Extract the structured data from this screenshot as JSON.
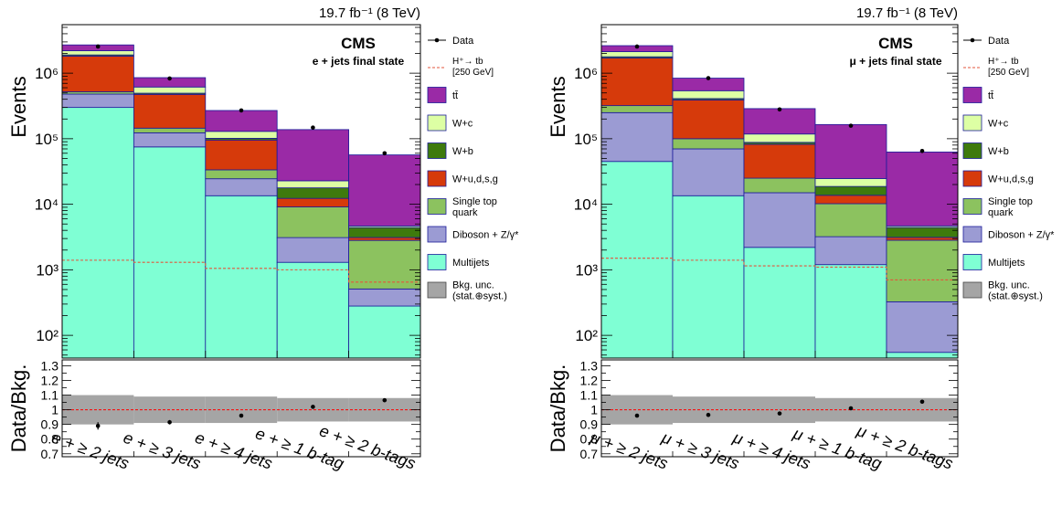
{
  "colors": {
    "Multijets": "#7fffd4",
    "Diboson": "#9b9bd3",
    "SingleTop": "#8cc25f",
    "Wudsg": "#d63a0b",
    "Wb": "#3e7a0d",
    "Wc": "#ddffa4",
    "ttbar": "#9a2aa6",
    "unc": "#a5a5a5",
    "outline": "#1b1b9a",
    "signal": "#e3563b",
    "ratioLine": "#ff0000"
  },
  "legend": {
    "data": "Data",
    "signal_line1": "H⁺→ tb",
    "signal_line2": "[250 GeV]",
    "ttbar": "tt̄",
    "Wc": "W+c",
    "Wb": "W+b",
    "Wudsg": "W+u,d,s,g",
    "single_line1": "Single top",
    "single_line2": "quark",
    "diboson": "Diboson + Z/γ*",
    "multijets": "Multijets",
    "unc_line1": "Bkg. unc.",
    "unc_line2": "(stat.⊕syst.)"
  },
  "chart_data": [
    {
      "type": "bar",
      "stacked": true,
      "log_y": true,
      "lumi": "19.7 fb⁻¹ (8 TeV)",
      "experiment": "CMS",
      "state": "e + jets final state",
      "ylabel": "Events",
      "ratio_ylabel": "Data/Bkg.",
      "ylim": [
        45,
        5500000
      ],
      "ratio_ylim": [
        0.68,
        1.34
      ],
      "yticks": [
        "10²",
        "10³",
        "10⁴",
        "10⁵",
        "10⁶"
      ],
      "ratio_yticks": [
        "0.7",
        "0.8",
        "0.9",
        "1",
        "1.1",
        "1.2",
        "1.3"
      ],
      "categories": [
        "e + ≥ 2 jets",
        "e + ≥ 3 jets",
        "e + ≥ 4 jets",
        "e +   ≥ 1 b-tag",
        "e + ≥ 2 b-tags"
      ],
      "series": [
        {
          "name": "Multijets",
          "key": "Multijets",
          "values": [
            300000,
            75000,
            13500,
            1300,
            280
          ]
        },
        {
          "name": "Diboson + Z/γ*",
          "key": "Diboson",
          "values": [
            180000,
            48000,
            11000,
            1800,
            230
          ]
        },
        {
          "name": "Single top quark",
          "key": "SingleTop",
          "values": [
            40000,
            22000,
            9000,
            6000,
            2300
          ]
        },
        {
          "name": "W+u,d,s,g",
          "key": "Wudsg",
          "values": [
            1300000,
            330000,
            62000,
            3200,
            300
          ]
        },
        {
          "name": "W+b",
          "key": "Wb",
          "values": [
            80000,
            20000,
            6000,
            5500,
            1300
          ]
        },
        {
          "name": "W+c",
          "key": "Wc",
          "values": [
            300000,
            120000,
            28000,
            5000,
            250
          ]
        },
        {
          "name": "tt̄",
          "key": "ttbar",
          "values": [
            500000,
            240000,
            140000,
            115000,
            52000
          ]
        }
      ],
      "data": [
        2550000,
        830000,
        270000,
        148000,
        60000
      ],
      "signal": [
        1400,
        1300,
        1050,
        1000,
        650
      ],
      "ratio": [
        0.89,
        0.915,
        0.96,
        1.02,
        1.065
      ],
      "ratio_err": [
        0.025,
        0.015,
        0.008,
        0.006,
        0.006
      ],
      "unc_band": [
        0.1,
        0.09,
        0.09,
        0.08,
        0.08
      ]
    },
    {
      "type": "bar",
      "stacked": true,
      "log_y": true,
      "lumi": "19.7 fb⁻¹ (8 TeV)",
      "experiment": "CMS",
      "state": "μ + jets final state",
      "ylabel": "Events",
      "ratio_ylabel": "Data/Bkg.",
      "ylim": [
        45,
        5500000
      ],
      "ratio_ylim": [
        0.68,
        1.34
      ],
      "yticks": [
        "10²",
        "10³",
        "10⁴",
        "10⁵",
        "10⁶"
      ],
      "ratio_yticks": [
        "0.7",
        "0.8",
        "0.9",
        "1",
        "1.1",
        "1.2",
        "1.3"
      ],
      "categories": [
        "μ + ≥ 2 jets",
        "μ + ≥ 3 jets",
        "μ + ≥ 4 jets",
        "μ +   ≥ 1 b-tag",
        "μ + ≥ 2 b-tags"
      ],
      "series": [
        {
          "name": "Multijets",
          "key": "Multijets",
          "values": [
            45000,
            13500,
            2200,
            1200,
            55
          ]
        },
        {
          "name": "Diboson + Z/γ*",
          "key": "Diboson",
          "values": [
            205000,
            56500,
            12800,
            2000,
            270
          ]
        },
        {
          "name": "Single top quark",
          "key": "SingleTop",
          "values": [
            70000,
            30000,
            10000,
            7000,
            2500
          ]
        },
        {
          "name": "W+u,d,s,g",
          "key": "Wudsg",
          "values": [
            1380000,
            290000,
            57000,
            3500,
            300
          ]
        },
        {
          "name": "W+b",
          "key": "Wb",
          "values": [
            80000,
            20000,
            6000,
            5000,
            1300
          ]
        },
        {
          "name": "W+c",
          "key": "Wc",
          "values": [
            350000,
            130000,
            30000,
            6000,
            250
          ]
        },
        {
          "name": "tt̄",
          "key": "ttbar",
          "values": [
            500000,
            300000,
            170000,
            140000,
            58000
          ]
        }
      ],
      "data": [
        2550000,
        840000,
        280000,
        158000,
        65000
      ],
      "signal": [
        1500,
        1400,
        1150,
        1100,
        700
      ],
      "ratio": [
        0.96,
        0.965,
        0.975,
        1.01,
        1.055
      ],
      "ratio_err": [
        0.012,
        0.008,
        0.008,
        0.006,
        0.006
      ],
      "unc_band": [
        0.1,
        0.09,
        0.09,
        0.08,
        0.08
      ]
    }
  ]
}
